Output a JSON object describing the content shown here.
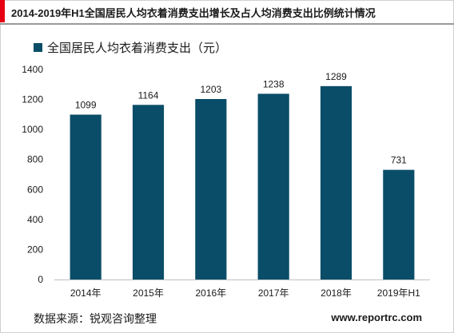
{
  "title": "2014-2019年H1全国居民人均衣着消费支出增长及占人均消费支出比例统计情况",
  "source_text": "数据来源：锐观咨询整理",
  "website": "www.reportrc.com",
  "colors": {
    "bar": "#0a4d68",
    "accent": "#e60012"
  },
  "chart_data": {
    "type": "bar",
    "categories": [
      "2014年",
      "2015年",
      "2016年",
      "2017年",
      "2018年",
      "2019年H1"
    ],
    "series": [
      {
        "name": "全国居民人均衣着消费支出（元）",
        "values": [
          1099,
          1164,
          1203,
          1238,
          1289,
          731
        ]
      }
    ],
    "ylim": [
      0,
      1400
    ],
    "yticks": [
      0,
      200,
      400,
      600,
      800,
      1000,
      1200,
      1400
    ],
    "xlabel": "",
    "ylabel": "",
    "grid": false,
    "legend_position": "top-left"
  }
}
